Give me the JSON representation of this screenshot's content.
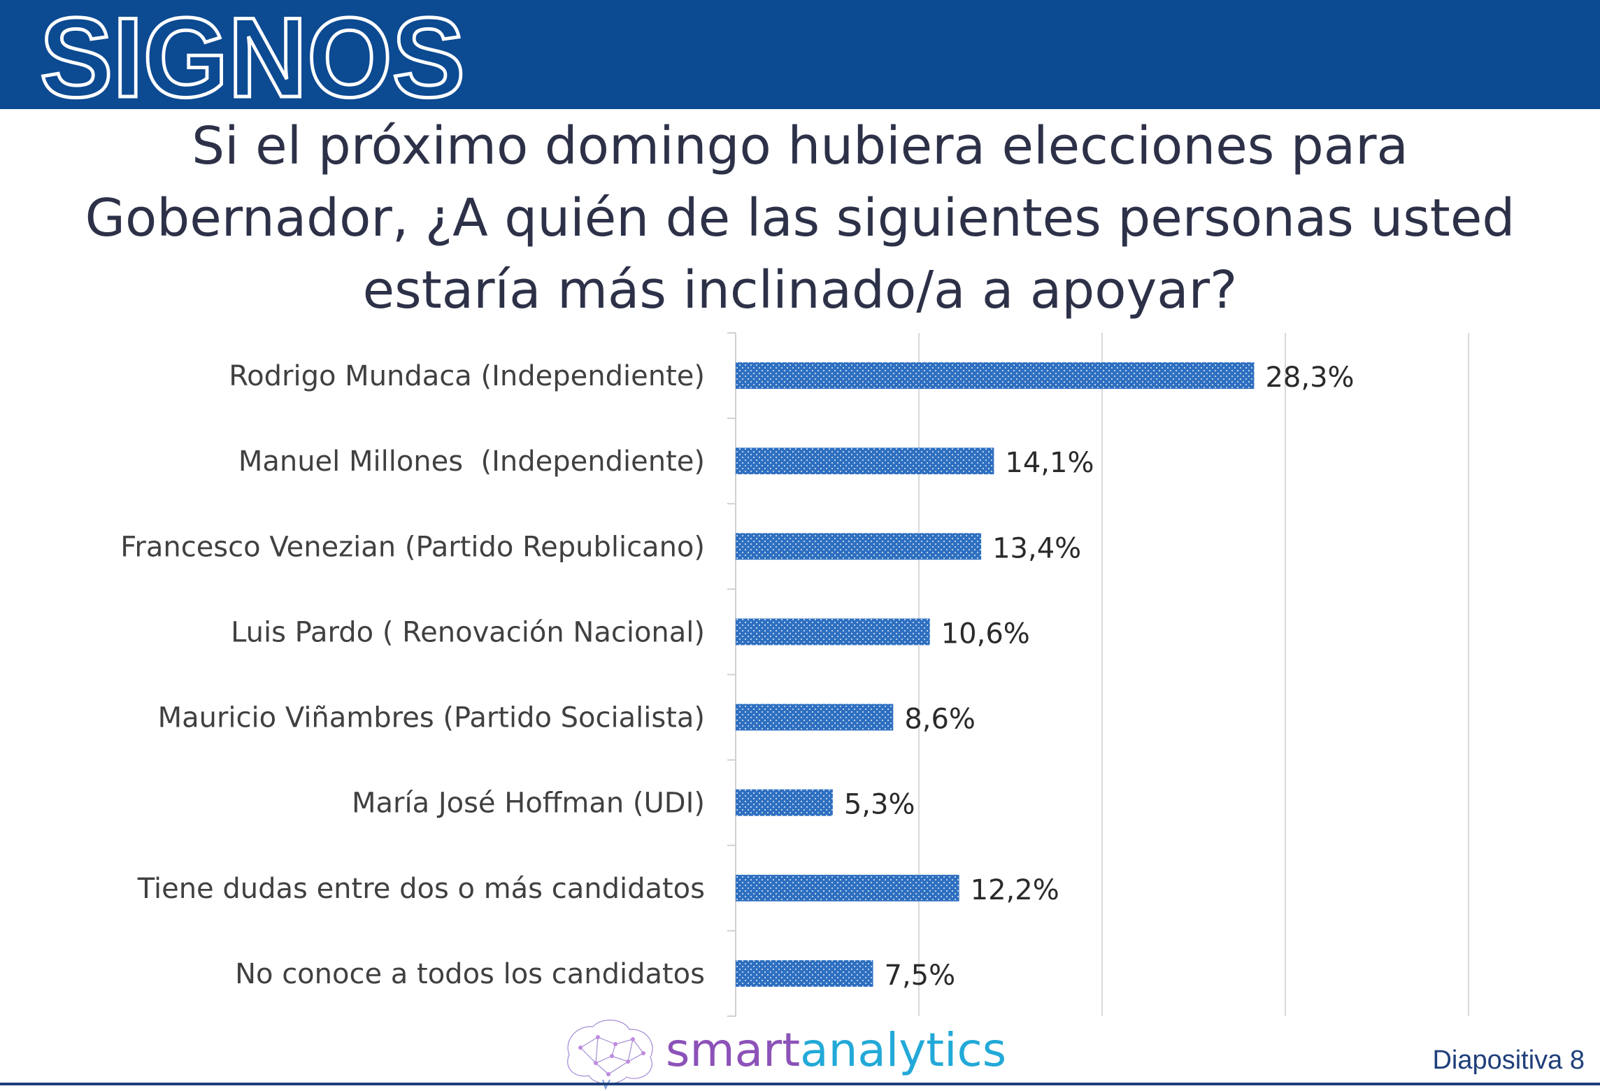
{
  "brand": {
    "logo_text": "SIGNOS",
    "footer_part1": "smart",
    "footer_part2": "analytics",
    "slide_label": "Diapositiva 8"
  },
  "colors": {
    "header": "#0c4a92",
    "bar": "#2e6fc0",
    "title": "#2d3148"
  },
  "chart_data": {
    "type": "bar",
    "orientation": "horizontal",
    "title": "Si el próximo domingo hubiera elecciones para Gobernador, ¿A quién de las siguientes personas usted estaría más inclinado/a a apoyar?",
    "categories": [
      "Rodrigo Mundaca (Independiente)",
      "Manuel Millones  (Independiente)",
      "Francesco Venezian (Partido Republicano)",
      "Luis Pardo ( Renovación Nacional)",
      "Mauricio Viñambres (Partido Socialista)",
      "María José Hoffman (UDI)",
      "Tiene dudas entre dos o más candidatos",
      "No conoce a todos los candidatos"
    ],
    "values": [
      28.3,
      14.1,
      13.4,
      10.6,
      8.6,
      5.3,
      12.2,
      7.5
    ],
    "value_labels": [
      "28,3%",
      "14,1%",
      "13,4%",
      "10,6%",
      "8,6%",
      "5,3%",
      "12,2%",
      "7,5%"
    ],
    "xlim": [
      0,
      40
    ],
    "x_gridlines": [
      0,
      10,
      20,
      30,
      40
    ],
    "grid": true,
    "bar_fill": "dotted pattern"
  }
}
